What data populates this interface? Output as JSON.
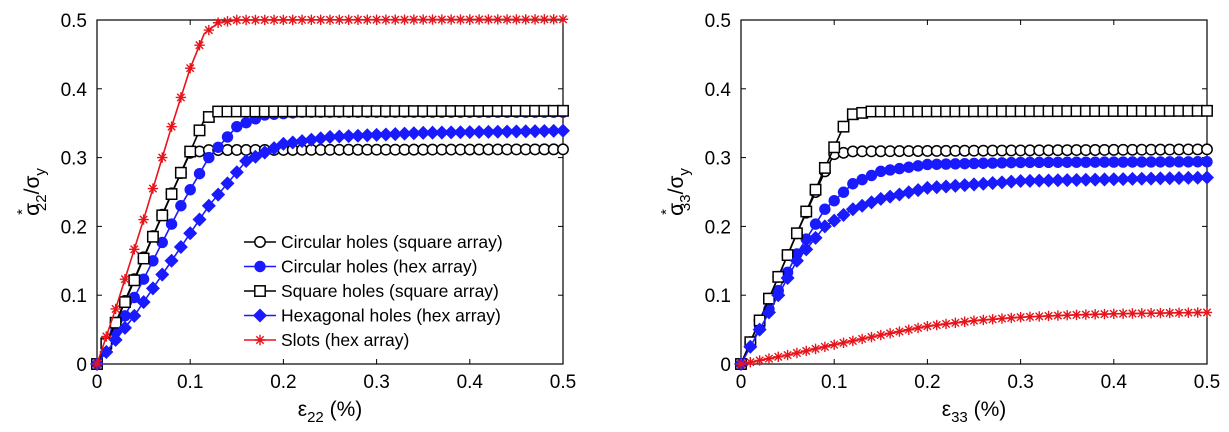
{
  "chart_data": [
    {
      "type": "line",
      "ylabel": {
        "sym": "σ",
        "sup": "*",
        "sub": "22",
        "sep": "/σ",
        "sub2": "y"
      },
      "xlabel": {
        "sym": "ε",
        "sub": "22",
        "unit": " (%)"
      },
      "xlim": [
        0,
        0.5
      ],
      "ylim": [
        0,
        0.5
      ],
      "xticks": [
        "0",
        "0.1",
        "0.2",
        "0.3",
        "0.4",
        "0.5"
      ],
      "yticks": [
        "0",
        "0.1",
        "0.2",
        "0.3",
        "0.4",
        "0.5"
      ],
      "legend_position": "bottom-right",
      "series": [
        {
          "name": "Circular holes (square array)",
          "color": "#000000",
          "marker": "circle-open",
          "points": [
            [
              0,
              0
            ],
            [
              0.02,
              0.06
            ],
            [
              0.05,
              0.155
            ],
            [
              0.08,
              0.248
            ],
            [
              0.1,
              0.307
            ],
            [
              0.12,
              0.311
            ],
            [
              0.5,
              0.312
            ]
          ]
        },
        {
          "name": "Circular holes (hex array)",
          "color": "#1a1aff",
          "marker": "circle-filled",
          "points": [
            [
              0,
              0
            ],
            [
              0.03,
              0.07
            ],
            [
              0.06,
              0.15
            ],
            [
              0.09,
              0.23
            ],
            [
              0.12,
              0.3
            ],
            [
              0.15,
              0.345
            ],
            [
              0.18,
              0.362
            ],
            [
              0.22,
              0.366
            ],
            [
              0.5,
              0.366
            ]
          ]
        },
        {
          "name": "Square holes (square array)",
          "color": "#000000",
          "marker": "square-open",
          "points": [
            [
              0,
              0
            ],
            [
              0.03,
              0.09
            ],
            [
              0.06,
              0.185
            ],
            [
              0.09,
              0.278
            ],
            [
              0.115,
              0.355
            ],
            [
              0.13,
              0.367
            ],
            [
              0.5,
              0.368
            ]
          ]
        },
        {
          "name": "Hexagonal holes (hex array)",
          "color": "#1a1aff",
          "marker": "diamond-filled",
          "points": [
            [
              0,
              0
            ],
            [
              0.04,
              0.07
            ],
            [
              0.08,
              0.15
            ],
            [
              0.12,
              0.23
            ],
            [
              0.16,
              0.295
            ],
            [
              0.2,
              0.32
            ],
            [
              0.25,
              0.33
            ],
            [
              0.35,
              0.336
            ],
            [
              0.5,
              0.339
            ]
          ]
        },
        {
          "name": "Slots (hex array)",
          "color": "#e8141b",
          "marker": "asterisk",
          "points": [
            [
              0,
              0
            ],
            [
              0.02,
              0.08
            ],
            [
              0.05,
              0.21
            ],
            [
              0.08,
              0.345
            ],
            [
              0.1,
              0.43
            ],
            [
              0.115,
              0.48
            ],
            [
              0.13,
              0.496
            ],
            [
              0.15,
              0.5
            ],
            [
              0.5,
              0.501
            ]
          ]
        }
      ]
    },
    {
      "type": "line",
      "ylabel": {
        "sym": "σ",
        "sup": "*",
        "sub": "33",
        "sep": "/σ",
        "sub2": "y"
      },
      "xlabel": {
        "sym": "ε",
        "sub": "33",
        "unit": " (%)"
      },
      "xlim": [
        0,
        0.5
      ],
      "ylim": [
        0,
        0.5
      ],
      "xticks": [
        "0",
        "0.1",
        "0.2",
        "0.3",
        "0.4",
        "0.5"
      ],
      "yticks": [
        "0",
        "0.1",
        "0.2",
        "0.3",
        "0.4",
        "0.5"
      ],
      "series": [
        {
          "name": "Circular holes (square array)",
          "color": "#000000",
          "marker": "circle-open",
          "points": [
            [
              0,
              0
            ],
            [
              0.03,
              0.095
            ],
            [
              0.06,
              0.19
            ],
            [
              0.09,
              0.28
            ],
            [
              0.1,
              0.305
            ],
            [
              0.12,
              0.309
            ],
            [
              0.5,
              0.312
            ]
          ]
        },
        {
          "name": "Circular holes (hex array)",
          "color": "#1a1aff",
          "marker": "circle-filled",
          "points": [
            [
              0,
              0
            ],
            [
              0.03,
              0.08
            ],
            [
              0.06,
              0.16
            ],
            [
              0.09,
              0.225
            ],
            [
              0.12,
              0.262
            ],
            [
              0.15,
              0.28
            ],
            [
              0.2,
              0.29
            ],
            [
              0.3,
              0.293
            ],
            [
              0.5,
              0.294
            ]
          ]
        },
        {
          "name": "Square holes (square array)",
          "color": "#000000",
          "marker": "square-open",
          "points": [
            [
              0,
              0
            ],
            [
              0.03,
              0.095
            ],
            [
              0.06,
              0.19
            ],
            [
              0.09,
              0.285
            ],
            [
              0.11,
              0.345
            ],
            [
              0.12,
              0.363
            ],
            [
              0.14,
              0.367
            ],
            [
              0.5,
              0.368
            ]
          ]
        },
        {
          "name": "Hexagonal holes (hex array)",
          "color": "#1a1aff",
          "marker": "diamond-filled",
          "points": [
            [
              0,
              0
            ],
            [
              0.03,
              0.075
            ],
            [
              0.06,
              0.15
            ],
            [
              0.09,
              0.2
            ],
            [
              0.12,
              0.225
            ],
            [
              0.15,
              0.24
            ],
            [
              0.2,
              0.256
            ],
            [
              0.3,
              0.266
            ],
            [
              0.5,
              0.271
            ]
          ]
        },
        {
          "name": "Slots (hex array)",
          "color": "#e8141b",
          "marker": "asterisk",
          "points": [
            [
              0,
              0
            ],
            [
              0.05,
              0.013
            ],
            [
              0.1,
              0.028
            ],
            [
              0.15,
              0.042
            ],
            [
              0.2,
              0.055
            ],
            [
              0.25,
              0.063
            ],
            [
              0.3,
              0.068
            ],
            [
              0.35,
              0.071
            ],
            [
              0.4,
              0.073
            ],
            [
              0.5,
              0.075
            ]
          ]
        }
      ]
    }
  ]
}
